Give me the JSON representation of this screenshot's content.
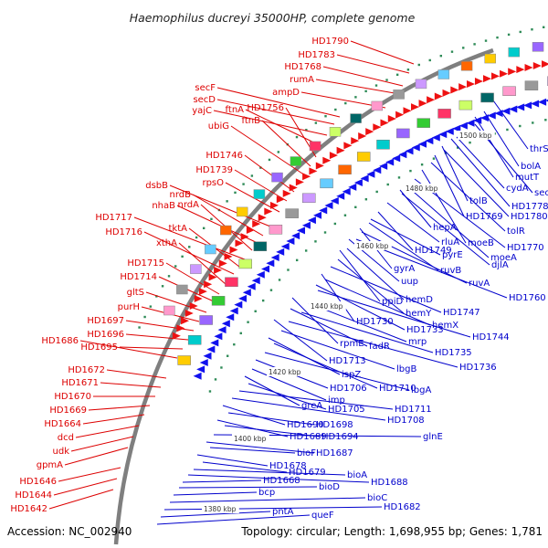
{
  "title": "Haemophilus ducreyi 35000HP, complete genome",
  "accession": "Accession: NC_002940",
  "summary": "Topology: circular; Length: 1,698,955 bp; Genes: 1,781",
  "colors": {
    "forward_label": "#dd0000",
    "reverse_label": "#0000cc",
    "backbone": "#808080",
    "forward_arrow": "#ee1111",
    "reverse_arrow": "#1111ee"
  },
  "kbp_ticks": [
    "1500 kbp",
    "1480 kbp",
    "1460 kbp",
    "1440 kbp",
    "1420 kbp",
    "1400 kbp",
    "1380 kbp"
  ],
  "red_labels": [
    "HD1790",
    "HD1783",
    "HD1768",
    "rumA",
    "ampD",
    "secF",
    "secD",
    "yajC",
    "ftnA",
    "HD1756",
    "ftnB",
    "ubiG",
    "HD1746",
    "HD1739",
    "rpsO",
    "dsbB",
    "nrdB",
    "nhaB",
    "nrdA",
    "HD1717",
    "tktA",
    "HD1716",
    "xthA",
    "HD1715",
    "HD1714",
    "gltS",
    "purH",
    "HD1697",
    "HD1696",
    "HD1695",
    "HD1686",
    "HD1672",
    "HD1671",
    "HD1670",
    "HD1669",
    "HD1664",
    "dcd",
    "udk",
    "gpmA",
    "HD1646",
    "HD1644",
    "HD1642"
  ],
  "blue_labels": [
    "thrS",
    "bolA",
    "mutT",
    "secA",
    "cydA",
    "tolB",
    "HD1778",
    "HD1769",
    "HD1780",
    "tolR",
    "moeB",
    "hepA",
    "HD1770",
    "moeA",
    "djlA",
    "rluA",
    "HD1749",
    "pyrE",
    "gyrA",
    "ruvB",
    "ruvA",
    "uup",
    "HD1760",
    "ppiD",
    "hemD",
    "hemY",
    "HD1747",
    "HD1730",
    "hemX",
    "HD1733",
    "HD1744",
    "rpmE",
    "mrp",
    "fadR",
    "HD1735",
    "HD1713",
    "HD1736",
    "lbgB",
    "ispZ",
    "HD1710",
    "lbgA",
    "HD1706",
    "imp",
    "greA",
    "HD1705",
    "HD1711",
    "HD1708",
    "HD1690",
    "HD1698",
    "HD1689",
    "HD1694",
    "glnE",
    "HD1687",
    "bioF",
    "HD1678",
    "HD1679",
    "bioA",
    "HD1688",
    "HD1668",
    "bioD",
    "bcp",
    "bioC",
    "HD1682",
    "pntA",
    "queF"
  ]
}
